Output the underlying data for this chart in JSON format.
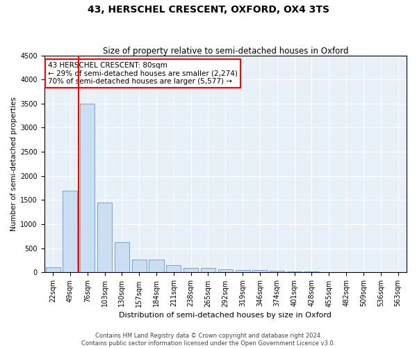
{
  "title1": "43, HERSCHEL CRESCENT, OXFORD, OX4 3TS",
  "title2": "Size of property relative to semi-detached houses in Oxford",
  "xlabel": "Distribution of semi-detached houses by size in Oxford",
  "ylabel": "Number of semi-detached properties",
  "categories": [
    "22sqm",
    "49sqm",
    "76sqm",
    "103sqm",
    "130sqm",
    "157sqm",
    "184sqm",
    "211sqm",
    "238sqm",
    "265sqm",
    "292sqm",
    "319sqm",
    "346sqm",
    "374sqm",
    "401sqm",
    "428sqm",
    "455sqm",
    "482sqm",
    "509sqm",
    "536sqm",
    "563sqm"
  ],
  "values": [
    110,
    1700,
    3500,
    1450,
    620,
    265,
    265,
    145,
    95,
    90,
    65,
    55,
    45,
    30,
    20,
    15,
    10,
    8,
    5,
    3,
    2
  ],
  "bar_color": "#ccdff2",
  "bar_edge_color": "#6699cc",
  "red_line_index": 2,
  "annotation_text_line1": "43 HERSCHEL CRESCENT: 80sqm",
  "annotation_text_line2": "← 29% of semi-detached houses are smaller (2,274)",
  "annotation_text_line3": "70% of semi-detached houses are larger (5,577) →",
  "annotation_box_facecolor": "white",
  "annotation_box_edgecolor": "red",
  "red_line_color": "red",
  "ylim": [
    0,
    4500
  ],
  "yticks": [
    0,
    500,
    1000,
    1500,
    2000,
    2500,
    3000,
    3500,
    4000,
    4500
  ],
  "footer1": "Contains HM Land Registry data © Crown copyright and database right 2024.",
  "footer2": "Contains public sector information licensed under the Open Government Licence v3.0.",
  "plot_bg_color": "#e8f0f8",
  "grid_color": "white",
  "title1_fontsize": 10,
  "title2_fontsize": 8.5,
  "xlabel_fontsize": 8,
  "ylabel_fontsize": 7.5,
  "tick_fontsize": 7,
  "footer_fontsize": 6,
  "annotation_fontsize": 7.5
}
